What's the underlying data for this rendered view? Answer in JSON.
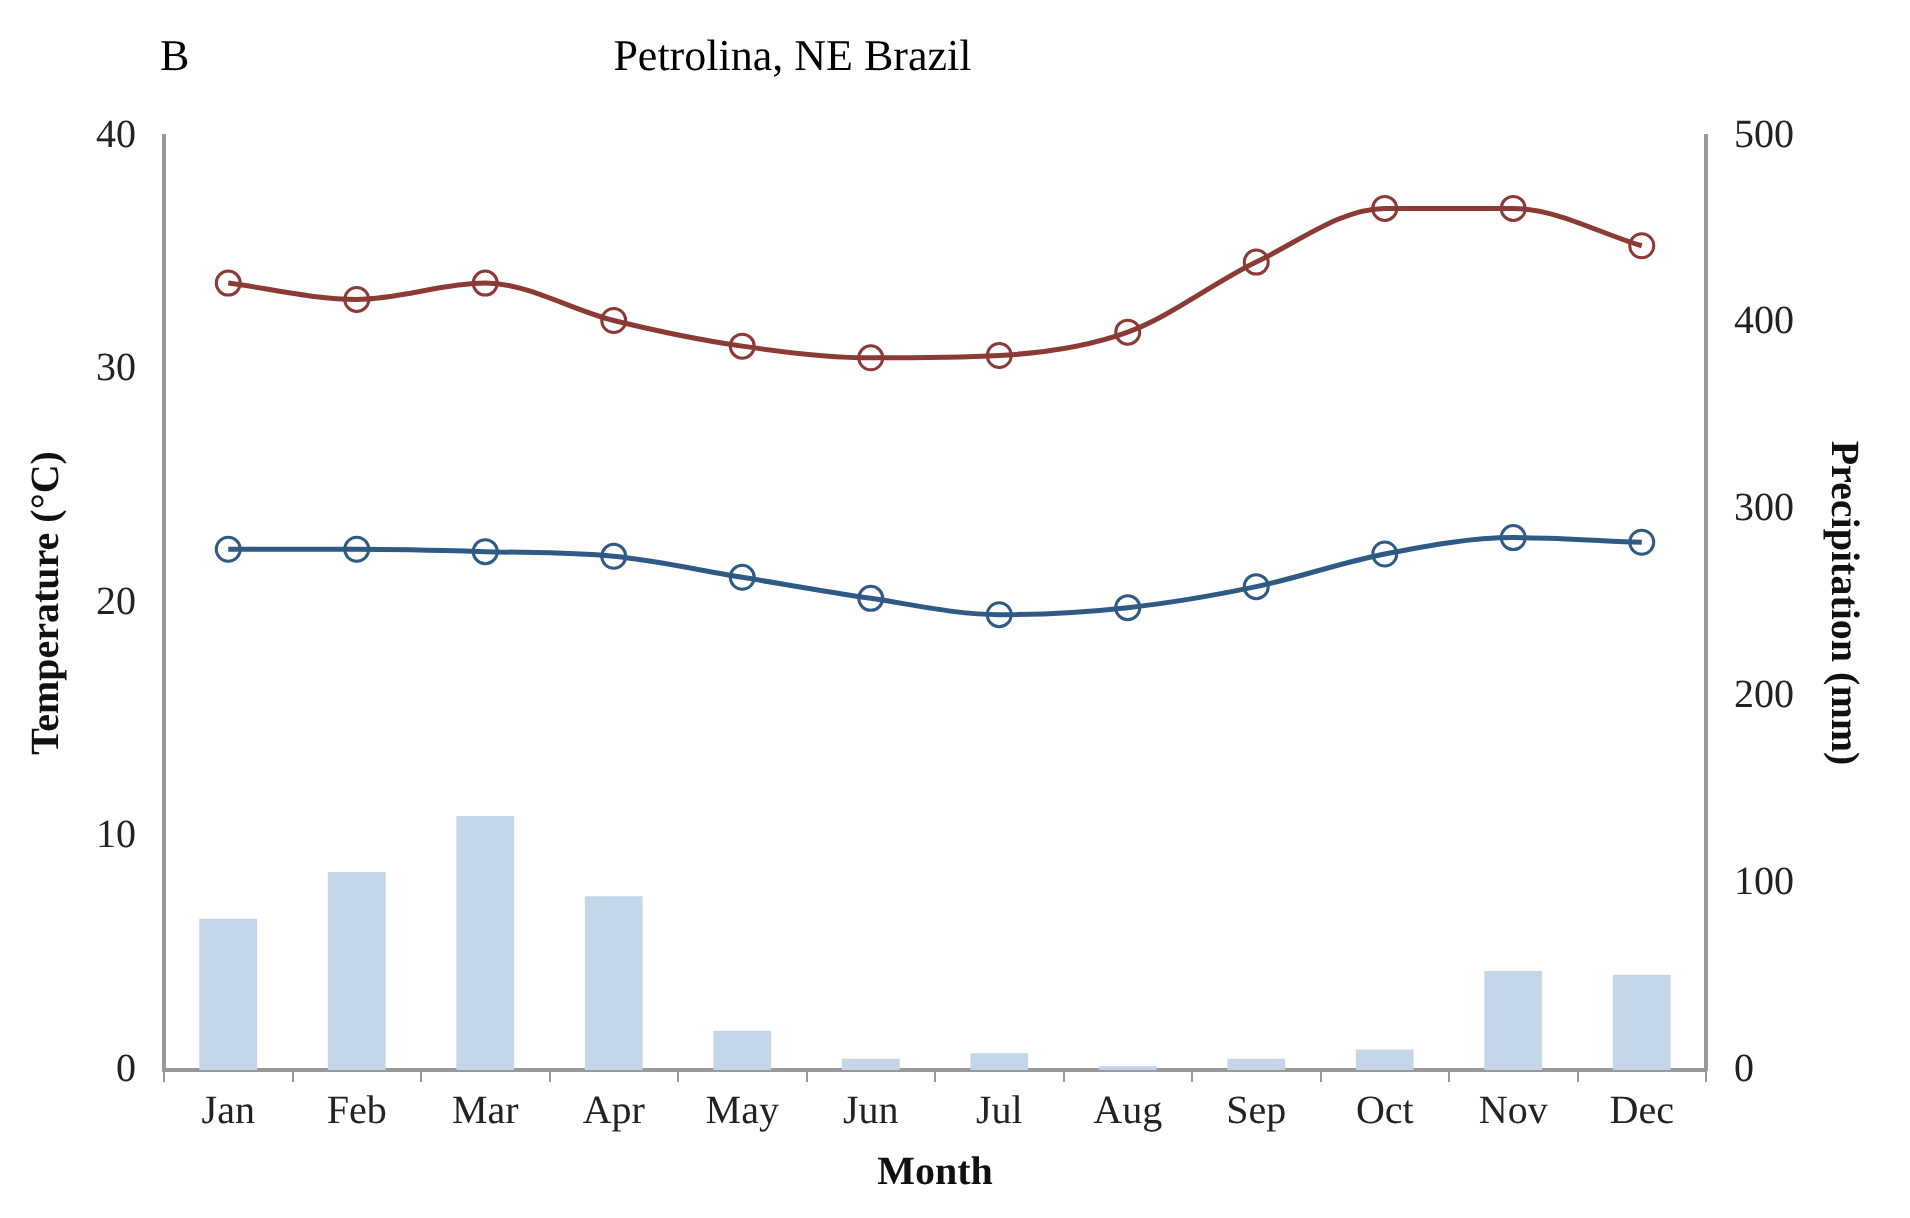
{
  "chart_data": {
    "type": "line",
    "title": "Petrolina, NE Brazil",
    "subtitle": "B",
    "xlabel": "Month",
    "ylabel": "Temperature (°C)",
    "y2label": "Precipitation (mm)",
    "categories": [
      "Jan",
      "Feb",
      "Mar",
      "Apr",
      "May",
      "Jun",
      "Jul",
      "Aug",
      "Sep",
      "Oct",
      "Nov",
      "Dec"
    ],
    "series": [
      {
        "type": "bar",
        "axis": "y2",
        "color": "#c5d6e8",
        "values": [
          81,
          106,
          136,
          93,
          21,
          6,
          9,
          2,
          6,
          11,
          53,
          51
        ]
      },
      {
        "color": "#8b3a36",
        "values": [
          33.7,
          33.0,
          33.7,
          32.1,
          31.0,
          30.5,
          30.6,
          31.6,
          34.6,
          36.9,
          36.9,
          35.3
        ]
      },
      {
        "color": "#2f5a85",
        "values": [
          22.3,
          22.3,
          22.2,
          22.0,
          21.1,
          20.2,
          19.5,
          19.8,
          20.7,
          22.1,
          22.8,
          22.6
        ]
      }
    ],
    "ylim": [
      0,
      40
    ],
    "yticks": [
      0,
      10,
      20,
      30,
      40
    ],
    "y2lim": [
      0,
      500
    ],
    "y2ticks": [
      0,
      100,
      200,
      300,
      400,
      500
    ],
    "marker": "circle",
    "line_style": "solid",
    "grid": false,
    "legend": false
  }
}
